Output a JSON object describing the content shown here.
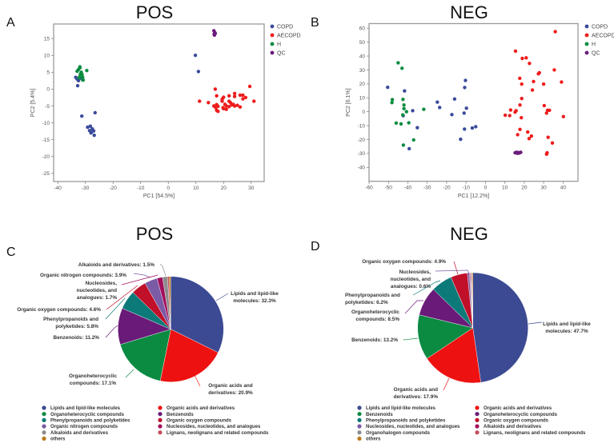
{
  "chart_data": [
    {
      "type": "scatter",
      "panel": "A",
      "title": "POS",
      "xlabel": "PC1 [54.5%]",
      "ylabel": "PC2 [5.4%]",
      "xlim": [
        -41.5,
        34.7
      ],
      "ylim": [
        -27.4,
        19.3
      ],
      "xticks": [
        -40,
        -30,
        -20,
        -10,
        0,
        10,
        20,
        30
      ],
      "yticks": [
        -25,
        -20,
        -15,
        -10,
        -5,
        0,
        5,
        10,
        15
      ],
      "grid": false,
      "legend_position": "right",
      "series": [
        {
          "name": "COPD",
          "color": "#3b4b9b",
          "points": [
            [
              -33.5,
              3.5
            ],
            [
              -33,
              3
            ],
            [
              -32,
              3.2
            ],
            [
              -32.5,
              2.5
            ],
            [
              -32.8,
              1
            ],
            [
              -31.3,
              -8
            ],
            [
              -26.5,
              -7
            ],
            [
              -29.2,
              -11.3
            ],
            [
              -28.2,
              -11
            ],
            [
              -27.5,
              -11.8
            ],
            [
              -28.5,
              -12.3
            ],
            [
              -27.8,
              -12.8
            ],
            [
              -27,
              -12.4
            ],
            [
              -28,
              -13
            ],
            [
              -26.8,
              -13.7
            ],
            [
              9.8,
              10
            ],
            [
              10.9,
              5.2
            ]
          ]
        },
        {
          "name": "AECOPD",
          "color": "#ee1c1c",
          "points": [
            [
              17,
              0
            ],
            [
              29.5,
              0.8
            ],
            [
              17.5,
              -2
            ],
            [
              20,
              -2.4
            ],
            [
              22,
              -2
            ],
            [
              24,
              -1.3
            ],
            [
              24,
              -2.2
            ],
            [
              26,
              -1.8
            ],
            [
              27,
              -1.8
            ],
            [
              28,
              -2.5
            ],
            [
              27,
              -2.9
            ],
            [
              19.5,
              -3
            ],
            [
              19.5,
              -3.6
            ],
            [
              22,
              -3.6
            ],
            [
              22.5,
              -4
            ],
            [
              11.3,
              -3.6
            ],
            [
              14.5,
              -4
            ],
            [
              31,
              -3.6
            ],
            [
              16.5,
              -5
            ],
            [
              17.5,
              -4.6
            ],
            [
              18,
              -5.1
            ],
            [
              17.2,
              -5.5
            ],
            [
              17.5,
              -6.3
            ],
            [
              18,
              -6.6
            ],
            [
              19.8,
              -5.5
            ],
            [
              20.5,
              -4.5
            ],
            [
              21,
              -5
            ],
            [
              21,
              -6
            ],
            [
              22,
              -5.2
            ],
            [
              23.5,
              -4.5
            ],
            [
              24,
              -5
            ],
            [
              25,
              -4.8
            ],
            [
              26,
              -5.3
            ],
            [
              23,
              -4.7
            ],
            [
              20,
              -5.8
            ]
          ]
        },
        {
          "name": "H",
          "color": "#0b8c40",
          "points": [
            [
              -33,
              5.3
            ],
            [
              -32.5,
              5.8
            ],
            [
              -32,
              6.3
            ],
            [
              -32,
              6.6
            ],
            [
              -31.5,
              5
            ],
            [
              -31.8,
              4.5
            ],
            [
              -31.2,
              4.3
            ],
            [
              -32,
              3.8
            ],
            [
              -31,
              3.5
            ],
            [
              -31,
              2.7
            ],
            [
              -30.8,
              2.7
            ],
            [
              -31.5,
              4
            ],
            [
              -29.5,
              5.5
            ],
            [
              -32.3,
              3.3
            ]
          ]
        },
        {
          "name": "QC",
          "color": "#6b1b7b",
          "points": [
            [
              16.5,
              17.3
            ],
            [
              16.8,
              16.8
            ],
            [
              17,
              16.5
            ],
            [
              16.7,
              16
            ],
            [
              16.6,
              16.3
            ]
          ]
        }
      ]
    },
    {
      "type": "scatter",
      "panel": "B",
      "title": "NEG",
      "xlabel": "PC1 [12.2%]",
      "ylabel": "PC2 [6.1%]",
      "xlim": [
        -60,
        47.7
      ],
      "ylim": [
        -50,
        63.3
      ],
      "xticks": [
        -60,
        -50,
        -40,
        -30,
        -20,
        -10,
        0,
        10,
        20,
        30,
        40
      ],
      "yticks": [
        -40,
        -30,
        -20,
        -10,
        0,
        10,
        20,
        30,
        40,
        50,
        60
      ],
      "grid": false,
      "legend_position": "right",
      "series": [
        {
          "name": "COPD",
          "color": "#3b4b9b",
          "points": [
            [
              -50.4,
              17.5
            ],
            [
              -41.7,
              14.9
            ],
            [
              -42.4,
              -2.9
            ],
            [
              -37.5,
              0.7
            ],
            [
              -35.1,
              -11.5
            ],
            [
              -39.3,
              -26.6
            ],
            [
              -24.8,
              6.9
            ],
            [
              -23.6,
              3
            ],
            [
              -15.9,
              9.1
            ],
            [
              -17.3,
              -2.1
            ],
            [
              -10.3,
              22.5
            ],
            [
              -10.7,
              17.4
            ],
            [
              -9.8,
              2.5
            ],
            [
              -11,
              -1
            ],
            [
              -10.8,
              -12.5
            ],
            [
              -12.8,
              -19.8
            ],
            [
              -6.8,
              -11.7
            ],
            [
              -5,
              -10.8
            ]
          ]
        },
        {
          "name": "AECOPD",
          "color": "#ee1c1c",
          "points": [
            [
              36,
              57.5
            ],
            [
              15.5,
              43.5
            ],
            [
              19,
              38.3
            ],
            [
              21,
              38.7
            ],
            [
              22.7,
              34.7
            ],
            [
              27.3,
              27.2
            ],
            [
              27.8,
              28
            ],
            [
              35.5,
              30
            ],
            [
              17.7,
              24
            ],
            [
              24.8,
              21.7
            ],
            [
              39.2,
              21.3
            ],
            [
              18.7,
              19.8
            ],
            [
              30,
              19.8
            ],
            [
              24.2,
              15.6
            ],
            [
              18.7,
              9.5
            ],
            [
              17.8,
              4.8
            ],
            [
              30.3,
              4.4
            ],
            [
              13,
              1.2
            ],
            [
              15.8,
              0.7
            ],
            [
              15.3,
              -0.3
            ],
            [
              32,
              1
            ],
            [
              33,
              1
            ],
            [
              31.5,
              -1
            ],
            [
              10.2,
              -2.5
            ],
            [
              12.5,
              -2.8
            ],
            [
              18.5,
              -4.3
            ],
            [
              40.2,
              -3.5
            ],
            [
              17.8,
              -12.7
            ],
            [
              21.8,
              -14.6
            ],
            [
              16.6,
              -16.5
            ],
            [
              23.7,
              -17.5
            ],
            [
              22.5,
              -19.3
            ],
            [
              32.3,
              -18.4
            ],
            [
              34.5,
              -22.5
            ],
            [
              31.8,
              -29.5
            ],
            [
              31.5,
              -30.5
            ]
          ]
        },
        {
          "name": "H",
          "color": "#0b8c40",
          "points": [
            [
              -45,
              35.1
            ],
            [
              -43,
              31.2
            ],
            [
              -48,
              8.7
            ],
            [
              -48.2,
              6.5
            ],
            [
              -42.5,
              8.8
            ],
            [
              -42,
              4.8
            ],
            [
              -42,
              2.2
            ],
            [
              -40.7,
              0
            ],
            [
              -42.6,
              -2.3
            ],
            [
              -46,
              -8.2
            ],
            [
              -43.5,
              -8.8
            ],
            [
              -39.5,
              -8
            ],
            [
              -31.8,
              1.7
            ],
            [
              -37,
              -20.3
            ],
            [
              -42.3,
              -24
            ]
          ]
        },
        {
          "name": "QC",
          "color": "#6b1b7b",
          "points": [
            [
              15.3,
              -29.5
            ],
            [
              16,
              -29.2
            ],
            [
              16.5,
              -29.8
            ],
            [
              17,
              -29.3
            ],
            [
              17.5,
              -29.6
            ],
            [
              18.2,
              -29.2
            ],
            [
              16.8,
              -29.9
            ]
          ]
        }
      ]
    },
    {
      "type": "pie",
      "panel": "C",
      "title": "POS",
      "legend_position": "bottom",
      "slices": [
        {
          "name": "Lipids and lipid-like molecules",
          "value": 32.3,
          "color": "#3b4a92",
          "label_lines": [
            "Lipids and lipid-like",
            "molecules: 32.3%"
          ]
        },
        {
          "name": "Organic acids and derivatives",
          "value": 20.9,
          "color": "#ee1111",
          "label_lines": [
            "Organic acids and",
            "derivatives: 20.9%"
          ]
        },
        {
          "name": "Organoheterocyclic compounds",
          "value": 17.1,
          "color": "#0b8a42",
          "label_lines": [
            "Organoheterocyclic",
            "compounds: 17.1%"
          ]
        },
        {
          "name": "Benzenoids",
          "value": 11.2,
          "color": "#6a1a78",
          "label_lines": [
            "Benzenoids: 11.2%"
          ]
        },
        {
          "name": "Phenylpropanoids and polyketides",
          "value": 5.8,
          "color": "#0b7a78",
          "label_lines": [
            "Phenylpropanoids and",
            "polyketides: 5.8%"
          ]
        },
        {
          "name": "Organic oxygen compounds",
          "value": 4.6,
          "color": "#c0102a",
          "label_lines": [
            "Organic oxygen compounds: 4.6%"
          ]
        },
        {
          "name": "Organic nitrogen compounds",
          "value": 3.9,
          "color": "#7b5aa6",
          "label_lines": [
            "Organic nitrogen compounds: 3.9%"
          ]
        },
        {
          "name": "Nucleosides, nucleotides, and analogues",
          "value": 1.7,
          "color": "#a30f5c",
          "label_lines": [
            "Nucleosides,",
            "nucleotides, and",
            "analogues: 1.7%"
          ]
        },
        {
          "name": "Alkaloids and derivatives",
          "value": 1.5,
          "color": "#8c8c8c",
          "label_lines": [
            "Alkaloids and derivatives: 1.5%"
          ]
        },
        {
          "name": "Lignans, neolignans and related compounds",
          "value": 0.5,
          "color": "#c24b5d",
          "label_lines": []
        },
        {
          "name": "others",
          "value": 0.5,
          "color": "#b97a1c",
          "label_lines": []
        }
      ]
    },
    {
      "type": "pie",
      "panel": "D",
      "title": "NEG",
      "legend_position": "bottom",
      "slices": [
        {
          "name": "Lipids and lipid-like molecules",
          "value": 47.7,
          "color": "#3b4a92",
          "label_lines": [
            "Lipids and lipid-like",
            "molecules: 47.7%"
          ]
        },
        {
          "name": "Organic acids and derivatives",
          "value": 17.9,
          "color": "#ee1111",
          "label_lines": [
            "Organic acids and",
            "derivatives: 17.9%"
          ]
        },
        {
          "name": "Benzenoids",
          "value": 13.2,
          "color": "#0b8a42",
          "label_lines": [
            "Benzenoids: 13.2%"
          ]
        },
        {
          "name": "Organoheterocyclic compounds",
          "value": 8.5,
          "color": "#6a1a78",
          "label_lines": [
            "Organoheterocyclic",
            "compounds: 8.5%"
          ]
        },
        {
          "name": "Phenylpropanoids and polyketides",
          "value": 6.2,
          "color": "#0b7a78",
          "label_lines": [
            "Phenylpropanoids and",
            "polyketides: 6.2%"
          ]
        },
        {
          "name": "Organic oxygen compounds",
          "value": 4.9,
          "color": "#c0102a",
          "label_lines": [
            "Organic oxygen compounds: 4.9%"
          ]
        },
        {
          "name": "Nucleosides, nucleotides, and analogues",
          "value": 0.6,
          "color": "#7b5aa6",
          "label_lines": [
            "Nucleosides,",
            "nucleotides, and",
            "analogues: 0.6%"
          ]
        },
        {
          "name": "Alkaloids and derivatives",
          "value": 0.25,
          "color": "#a30f5c",
          "label_lines": []
        },
        {
          "name": "Organohalogen compounds",
          "value": 0.25,
          "color": "#8c8c8c",
          "label_lines": []
        },
        {
          "name": "Lignans, neolignans and related compounds",
          "value": 0.25,
          "color": "#c24b5d",
          "label_lines": []
        },
        {
          "name": "others",
          "value": 0.25,
          "color": "#b97a1c",
          "label_lines": []
        }
      ]
    }
  ]
}
